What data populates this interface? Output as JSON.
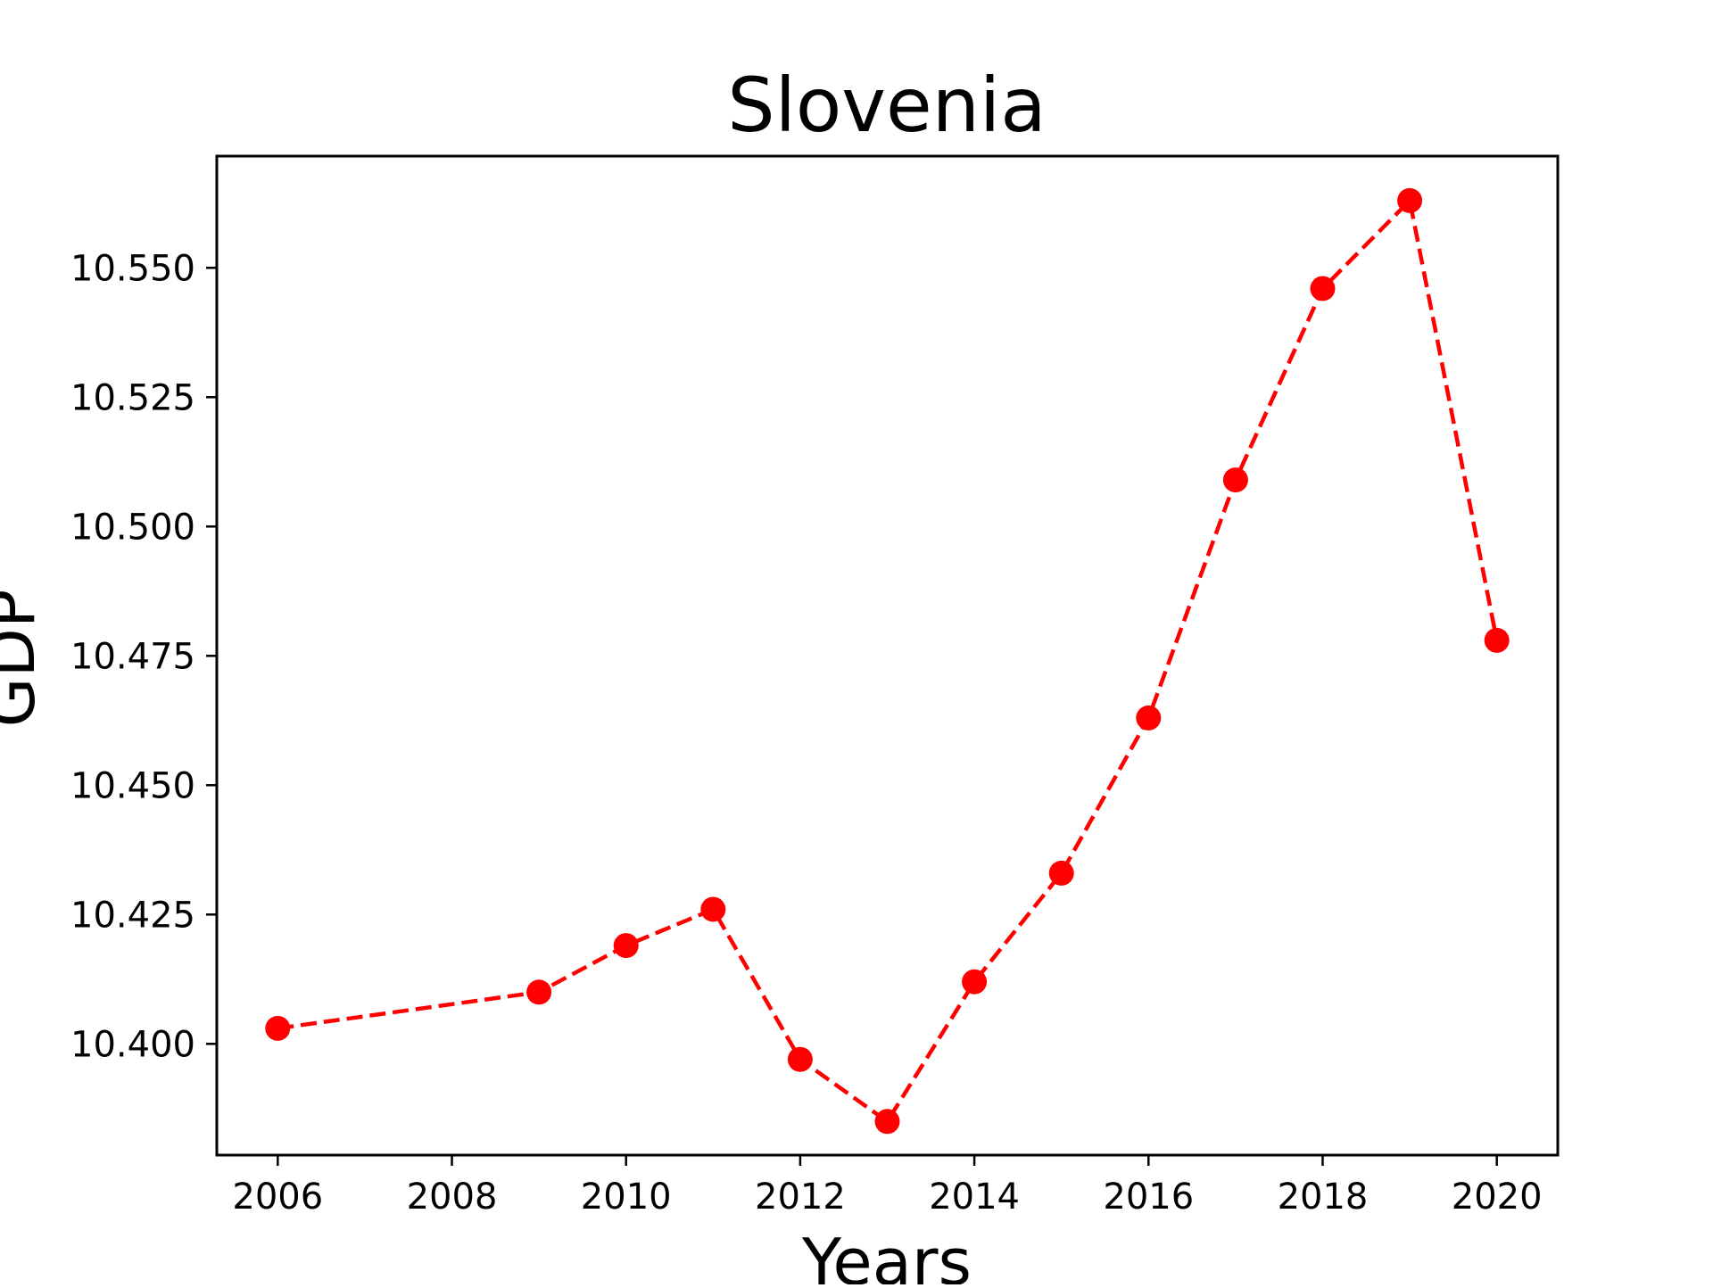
{
  "chart_data": {
    "type": "line",
    "title": "Slovenia",
    "xlabel": "Years",
    "ylabel": "GDP",
    "xlim": [
      2005.3,
      2020.7
    ],
    "ylim": [
      10.3785,
      10.5716
    ],
    "x_ticks": [
      2006,
      2008,
      2010,
      2012,
      2014,
      2016,
      2018,
      2020
    ],
    "x_tick_labels": [
      "2006",
      "2008",
      "2010",
      "2012",
      "2014",
      "2016",
      "2018",
      "2020"
    ],
    "y_ticks": [
      10.4,
      10.425,
      10.45,
      10.475,
      10.5,
      10.525,
      10.55
    ],
    "y_tick_labels": [
      "10.400",
      "10.425",
      "10.450",
      "10.475",
      "10.500",
      "10.525",
      "10.550"
    ],
    "grid": false,
    "legend": "none",
    "series": [
      {
        "color": "#ff0000",
        "line_style": "dashed",
        "marker": "circle",
        "x": [
          2006,
          2009,
          2010,
          2011,
          2012,
          2013,
          2014,
          2015,
          2016,
          2017,
          2018,
          2019,
          2020
        ],
        "values": [
          10.403,
          10.41,
          10.419,
          10.426,
          10.397,
          10.385,
          10.412,
          10.433,
          10.463,
          10.509,
          10.546,
          10.563,
          10.478
        ]
      }
    ]
  }
}
